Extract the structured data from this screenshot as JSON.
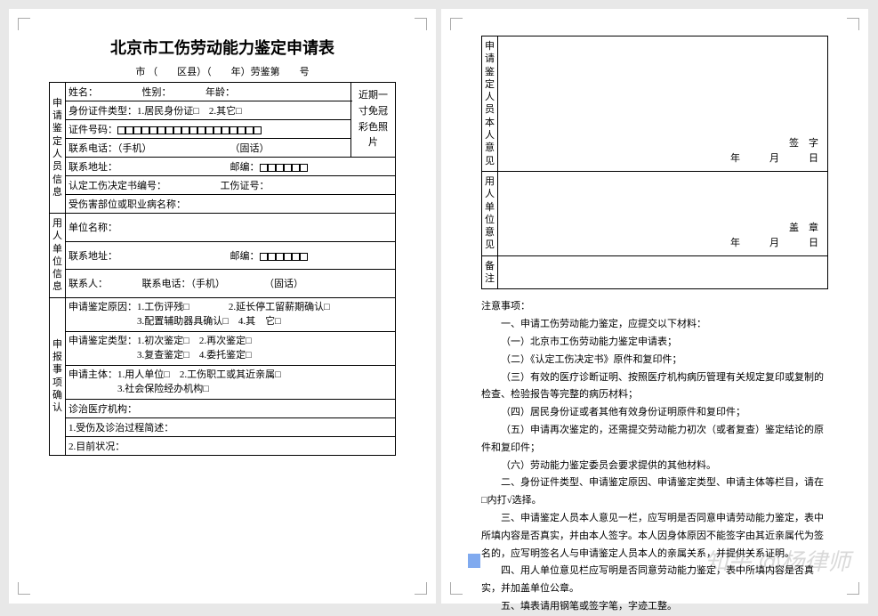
{
  "title": "北京市工伤劳动能力鉴定申请表",
  "subtitle_parts": {
    "a": "市 （",
    "b": "区县）（",
    "c": "年）劳鉴第",
    "d": "号"
  },
  "sections": {
    "applicant": "申请鉴定人员信息",
    "employer": "用人单位信息",
    "items": "申报事项确认"
  },
  "labels": {
    "name": "姓名：",
    "sex": "性别：",
    "age": "年龄：",
    "idtype": "身份证件类型：",
    "idtype1": "1.居民身份证□",
    "idtype2": "2.其它□",
    "idno": "证件号码：",
    "phone": "联系电话：（手机）",
    "tel": "（固话）",
    "addr": "联系地址：",
    "post": "邮编：",
    "doc": "认定工伤决定书编号：",
    "injno": "工伤证号：",
    "part": "受伤害部位或职业病名称：",
    "empname": "单位名称：",
    "empaddr": "联系地址：",
    "contact": "联系人：",
    "contactphone": "联系电话：（手机）",
    "reason": "申请鉴定原因：",
    "r1": "1.工伤评残□",
    "r2": "2.延长停工留薪期确认□",
    "r3": "3.配置辅助器具确认□",
    "r4": "4.其　它□",
    "type": "申请鉴定类型：",
    "t1": "1.初次鉴定□",
    "t2": "2.再次鉴定□",
    "t3": "3.复查鉴定□",
    "t4": "4.委托鉴定□",
    "subject": "申请主体：",
    "s1": "1.用人单位□",
    "s2": "2.工伤职工或其近亲属□",
    "s3": "3.社会保险经办机构□",
    "hospital": "诊治医疗机构：",
    "desc": "1.受伤及诊治过程简述：",
    "status": "2.目前状况：",
    "photo": "近期一寸免冠彩色照片"
  },
  "page2sections": {
    "applicant_opinion": "申请鉴定人员本人意见",
    "employer_opinion": "用人单位意见",
    "remarks": "备注"
  },
  "sig": {
    "sign": "签　字",
    "seal": "盖　章",
    "date": "年　　　月　　　日"
  },
  "notes_title": "注意事项：",
  "notes": [
    "一、申请工伤劳动能力鉴定，应提交以下材料：",
    "（一）北京市工伤劳动能力鉴定申请表；",
    "（二）《认定工伤决定书》原件和复印件；",
    "（三）有效的医疗诊断证明、按照医疗机构病历管理有关规定复印或复制的检查、检验报告等完整的病历材料；",
    "（四）居民身份证或者其他有效身份证明原件和复印件；",
    "（五）申请再次鉴定的，还需提交劳动能力初次（或者复查）鉴定结论的原件和复印件；",
    "（六）劳动能力鉴定委员会要求提供的其他材料。",
    "二、身份证件类型、申请鉴定原因、申请鉴定类型、申请主体等栏目，请在□内打√选择。",
    "三、申请鉴定人员本人意见一栏，应写明是否同意申请劳动能力鉴定，表中所填内容是否真实，并由本人签字。本人因身体原因不能签字由其近亲属代为签名的，应写明签名人与申请鉴定人员本人的亲属关系，并提供关系证明。",
    "四、用人单位意见栏应写明是否同意劳动能力鉴定，表中所填内容是否真实，并加盖单位公章。",
    "五、填表请用钢笔或签字笔，字迹工整。"
  ],
  "watermark": "知乎 @杨律师"
}
